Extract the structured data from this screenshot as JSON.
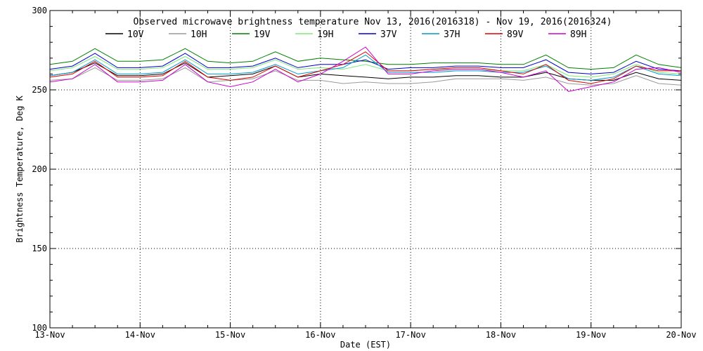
{
  "chart_data": {
    "type": "line",
    "title": "Observed microwave brightness temperature Nov 13, 2016(2016318) - Nov 19, 2016(2016324)",
    "xlabel": "Date (EST)",
    "ylabel": "Brightness Temperature, Deg K",
    "xlim": [
      0,
      7
    ],
    "ylim": [
      100,
      300
    ],
    "x_ticks": [
      {
        "value": 0,
        "label": "13-Nov"
      },
      {
        "value": 1,
        "label": "14-Nov"
      },
      {
        "value": 2,
        "label": "15-Nov"
      },
      {
        "value": 3,
        "label": "16-Nov"
      },
      {
        "value": 4,
        "label": "17-Nov"
      },
      {
        "value": 5,
        "label": "18-Nov"
      },
      {
        "value": 6,
        "label": "19-Nov"
      },
      {
        "value": 7,
        "label": "20-Nov"
      }
    ],
    "y_ticks": [
      100,
      150,
      200,
      250,
      300
    ],
    "grid": "dotted",
    "legend_position": "top",
    "x_days": [
      0,
      0.25,
      0.5,
      0.75,
      1,
      1.25,
      1.5,
      1.75,
      2,
      2.25,
      2.5,
      2.75,
      3,
      3.25,
      3.5,
      3.75,
      4,
      4.25,
      4.5,
      4.75,
      5,
      5.25,
      5.5,
      5.75,
      6,
      6.25,
      6.5,
      6.75,
      7
    ],
    "series": [
      {
        "name": "10V",
        "color": "#000000",
        "values": [
          259,
          261,
          267,
          259,
          259,
          260,
          267,
          258,
          259,
          260,
          265,
          258,
          260,
          259,
          258,
          257,
          258,
          258,
          259,
          259,
          258,
          258,
          261,
          257,
          256,
          256,
          261,
          257,
          256
        ]
      },
      {
        "name": "10H",
        "color": "#999999",
        "values": [
          256,
          257,
          264,
          256,
          256,
          257,
          264,
          255,
          256,
          257,
          262,
          256,
          256,
          254,
          255,
          254,
          254,
          255,
          257,
          257,
          257,
          256,
          258,
          254,
          253,
          254,
          259,
          254,
          253
        ]
      },
      {
        "name": "19V",
        "color": "#008000",
        "values": [
          266,
          268,
          276,
          268,
          268,
          269,
          276,
          268,
          267,
          268,
          274,
          268,
          270,
          269,
          268,
          266,
          266,
          267,
          267,
          267,
          266,
          266,
          272,
          264,
          263,
          264,
          272,
          266,
          264
        ]
      },
      {
        "name": "19H",
        "color": "#7ee87e",
        "values": [
          262,
          264,
          271,
          263,
          263,
          264,
          271,
          263,
          263,
          264,
          269,
          263,
          264,
          263,
          266,
          262,
          262,
          263,
          263,
          263,
          262,
          262,
          266,
          259,
          258,
          260,
          266,
          261,
          260
        ]
      },
      {
        "name": "37V",
        "color": "#0000cc",
        "values": [
          263,
          265,
          273,
          264,
          264,
          265,
          273,
          264,
          264,
          265,
          270,
          264,
          266,
          266,
          269,
          263,
          264,
          264,
          265,
          265,
          264,
          264,
          269,
          261,
          260,
          261,
          268,
          263,
          262
        ]
      },
      {
        "name": "37H",
        "color": "#0099cc",
        "values": [
          259,
          261,
          269,
          260,
          260,
          261,
          269,
          260,
          260,
          261,
          266,
          260,
          262,
          264,
          272,
          261,
          261,
          261,
          262,
          262,
          261,
          261,
          265,
          257,
          256,
          258,
          265,
          260,
          259
        ]
      },
      {
        "name": "89V",
        "color": "#dd0000",
        "values": [
          258,
          260,
          268,
          258,
          258,
          259,
          268,
          258,
          256,
          258,
          265,
          258,
          262,
          266,
          274,
          262,
          262,
          263,
          264,
          264,
          262,
          260,
          266,
          256,
          254,
          257,
          265,
          262,
          262
        ]
      },
      {
        "name": "89H",
        "color": "#cc00cc",
        "values": [
          255,
          257,
          266,
          255,
          255,
          256,
          266,
          255,
          252,
          255,
          263,
          255,
          260,
          268,
          277,
          260,
          260,
          262,
          263,
          263,
          261,
          258,
          262,
          249,
          252,
          255,
          263,
          264,
          261
        ]
      }
    ]
  }
}
